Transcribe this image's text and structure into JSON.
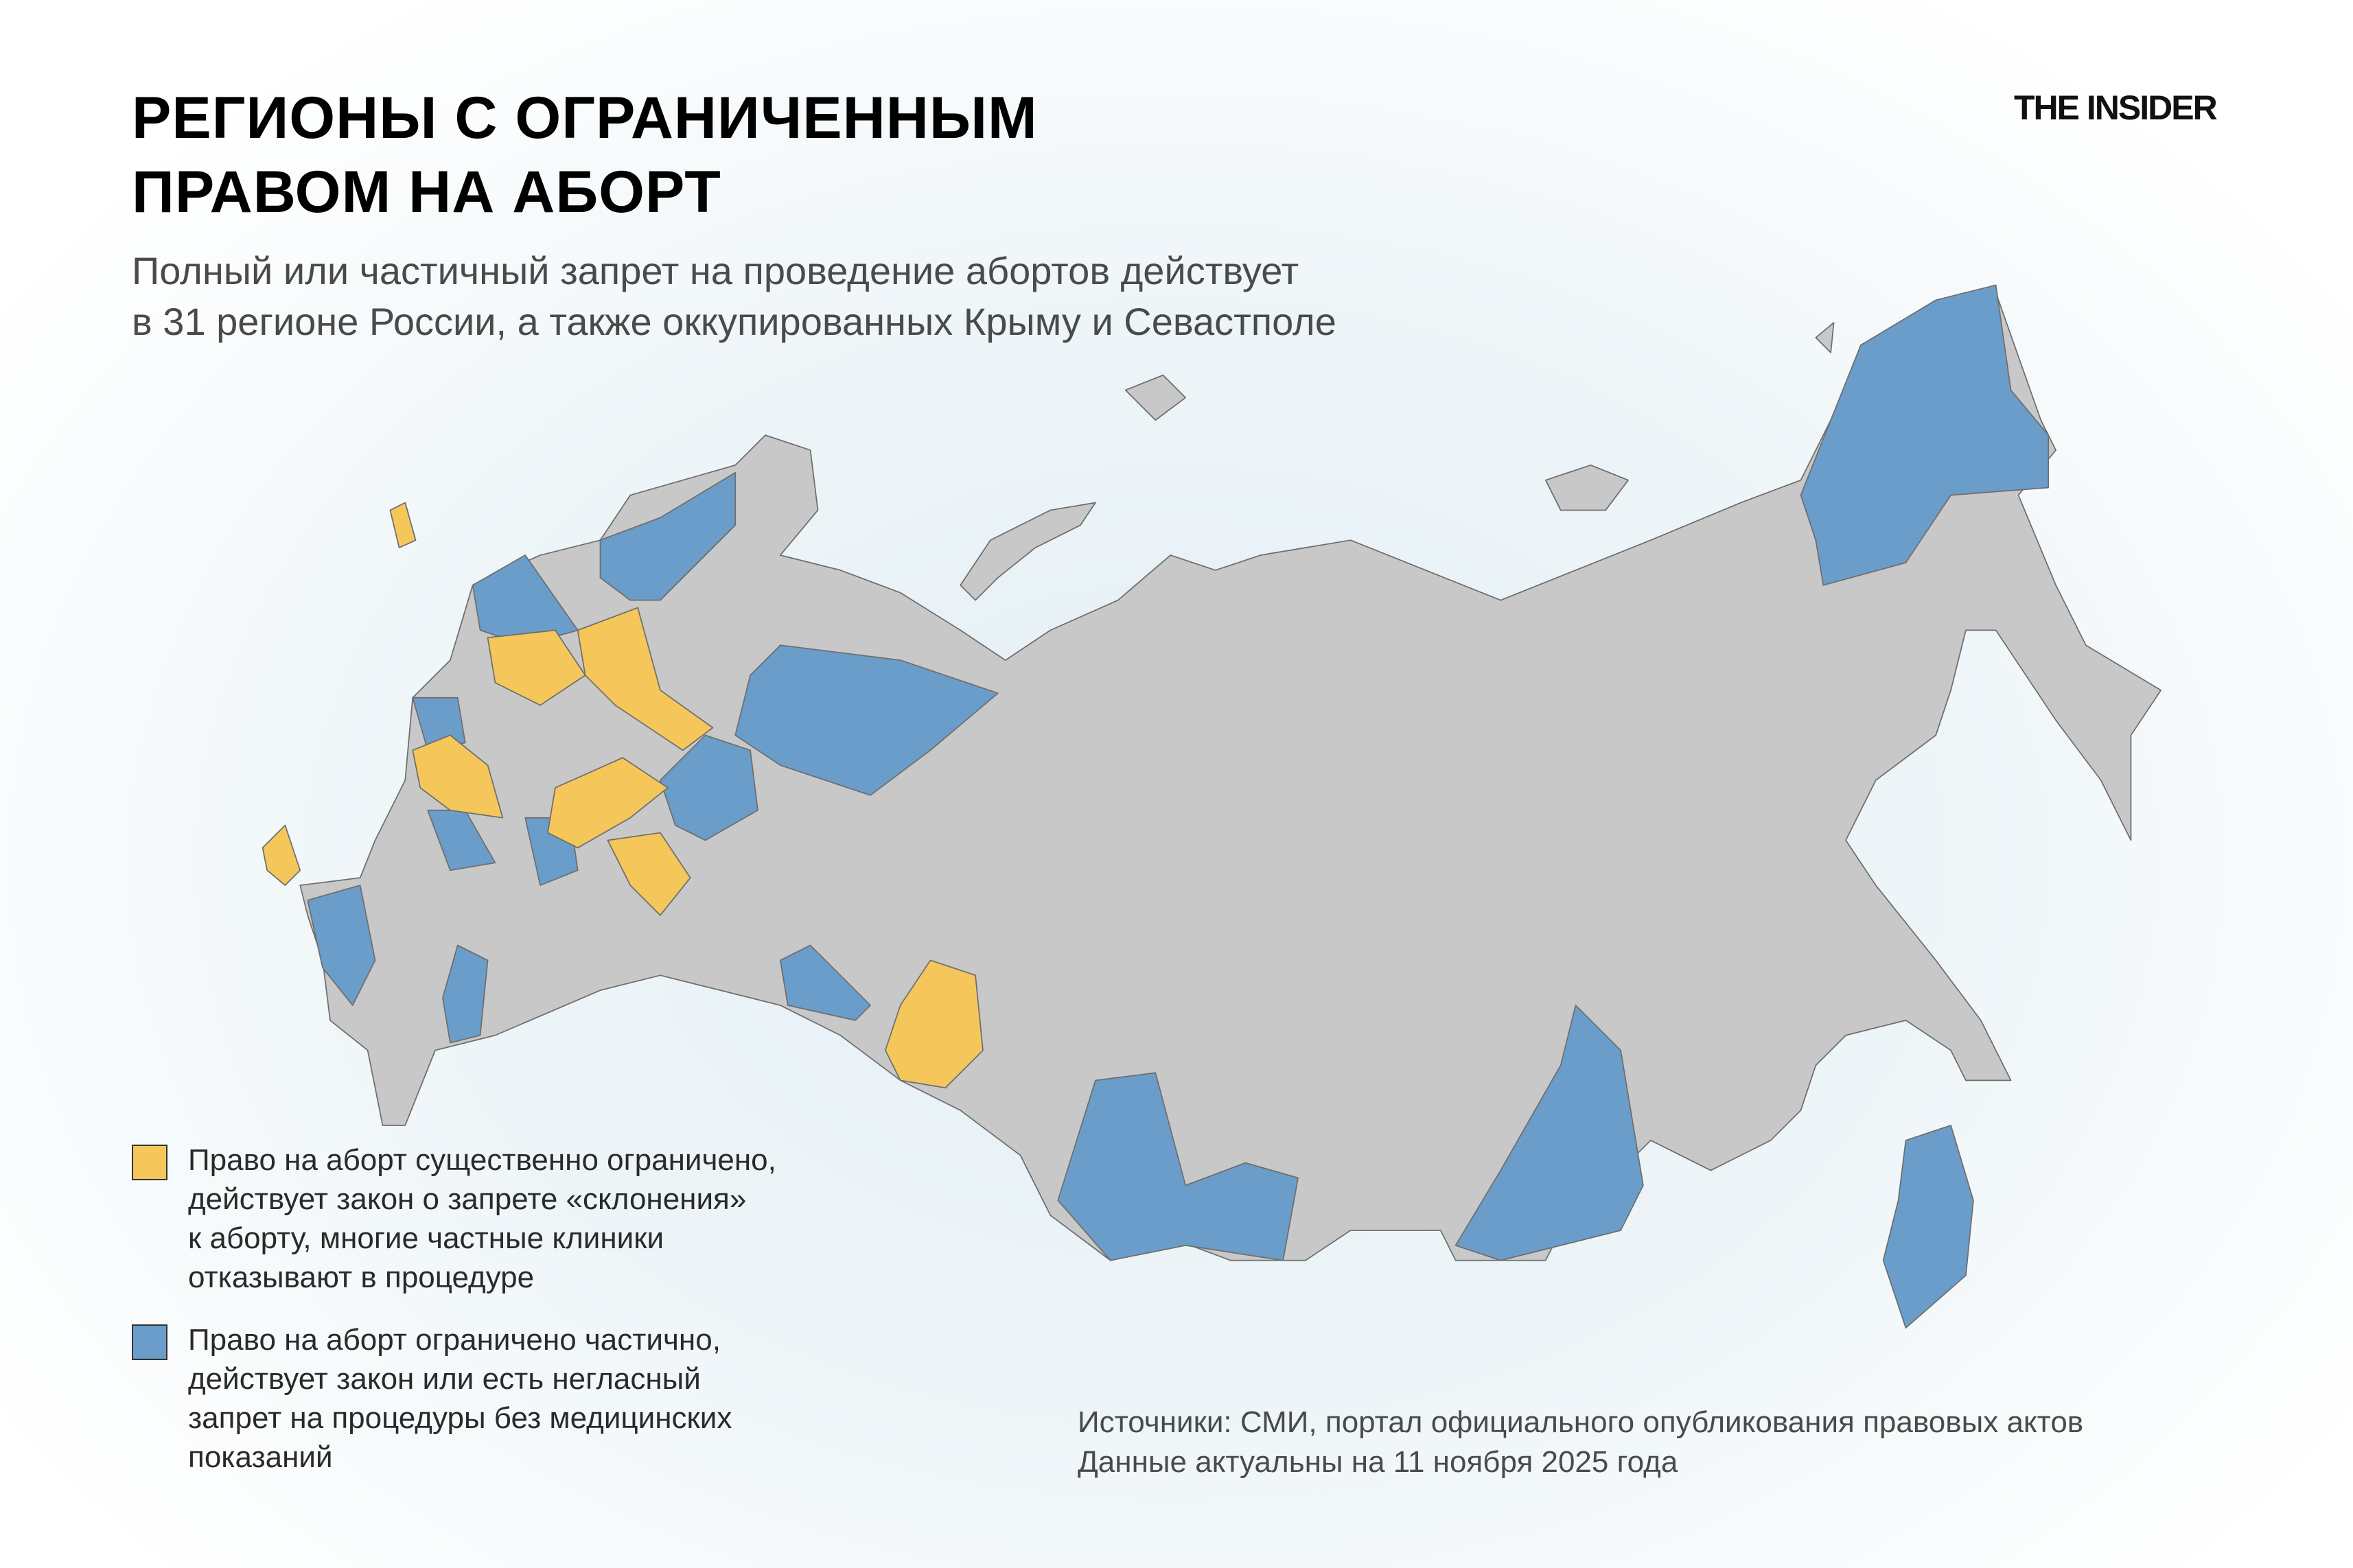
{
  "header": {
    "title_lines": [
      "РЕГИОНЫ С ОГРАНИЧЕННЫМ",
      "ПРАВОМ НА АБОРТ"
    ],
    "subtitle_lines": [
      "Полный или частичный запрет на проведение абортов действует",
      "в 31 регионе России, а также оккупированных Крыму и Севастполе"
    ],
    "logo": "THE INSIDER"
  },
  "map": {
    "colors": {
      "base": "#c8c8c8",
      "border": "#6e6e6e",
      "substantially_restricted": "#f5c75a",
      "partially_restricted": "#6a9dc9"
    }
  },
  "legend": [
    {
      "color": "#f5c75a",
      "lines": [
        "Право на аборт существенно ограничено,",
        "действует закон о запрете «склонения»",
        "к аборту, многие частные клиники",
        "отказывают в процедуре"
      ]
    },
    {
      "color": "#6a9dc9",
      "lines": [
        "Право на аборт ограничено частично,",
        "действует закон или есть негласный",
        "запрет на процедуры без медицинских",
        "показаний"
      ]
    }
  ],
  "footer": {
    "source_lines": [
      "Источники: СМИ, портал официального опубликования правовых актов",
      "Данные актуальны на 11 ноября 2025 года"
    ]
  }
}
